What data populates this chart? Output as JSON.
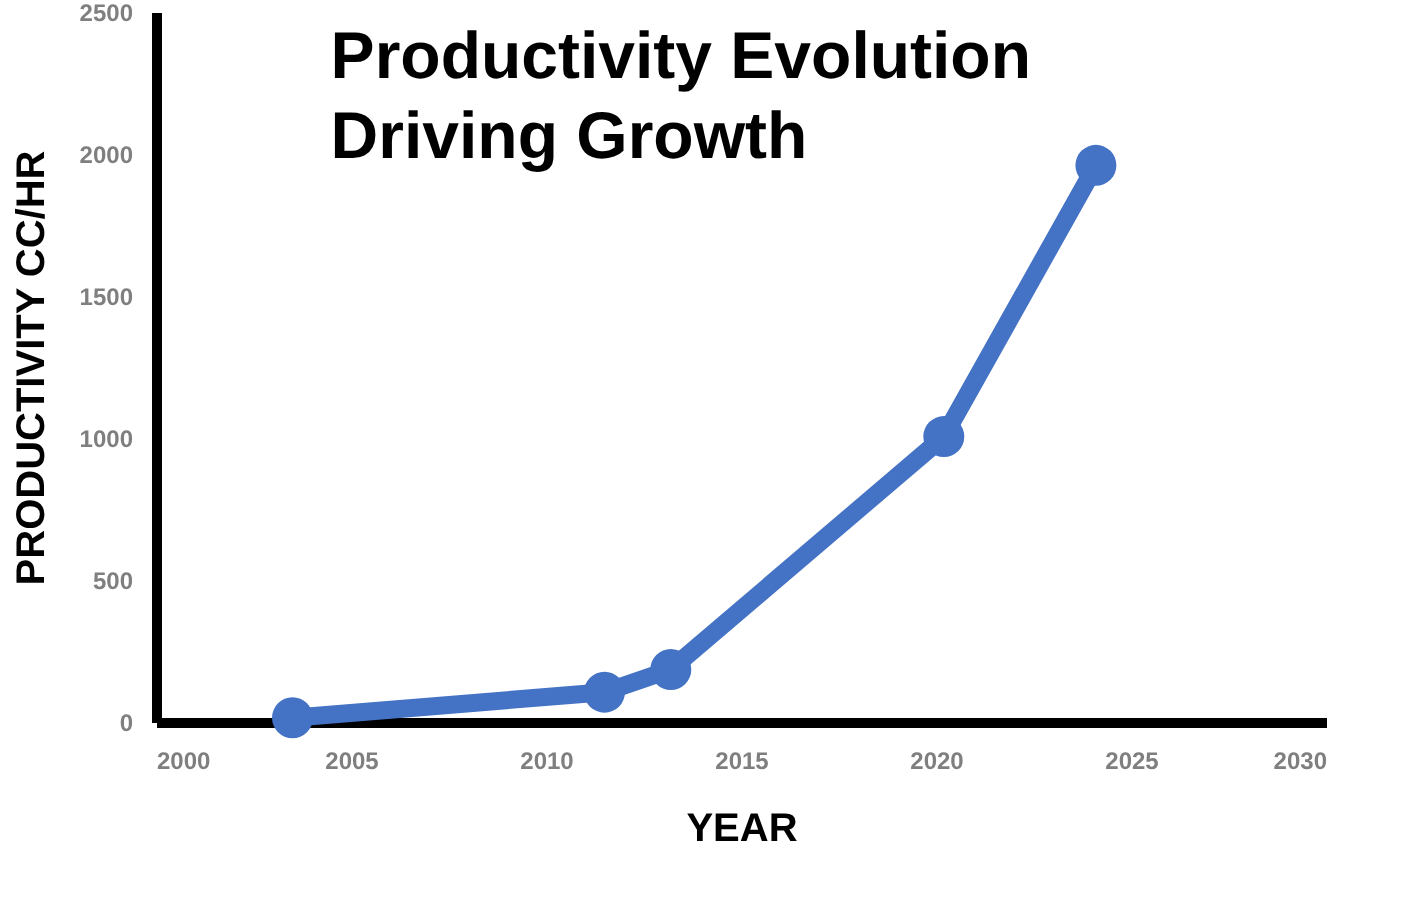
{
  "chart_data": {
    "type": "line",
    "title": "Productivity Evolution Driving Growth",
    "xlabel": "YEAR",
    "ylabel": "PRODUCTIVITY CC/HR",
    "x": [
      2003.5,
      2011.5,
      2013.2,
      2020.2,
      2024.1
    ],
    "series": [
      {
        "color": "#4472c4",
        "values": [
          15,
          105,
          185,
          1005,
          1960
        ]
      }
    ],
    "xlim": [
      2000,
      2030
    ],
    "xticks": [
      2000,
      2005,
      2010,
      2015,
      2020,
      2025,
      2030
    ],
    "ylim": [
      0,
      2500
    ],
    "yticks": [
      0,
      500,
      1000,
      1500,
      2000,
      2500
    ],
    "grid": false,
    "legend": false,
    "marker": "circle",
    "line_style": "solid"
  }
}
